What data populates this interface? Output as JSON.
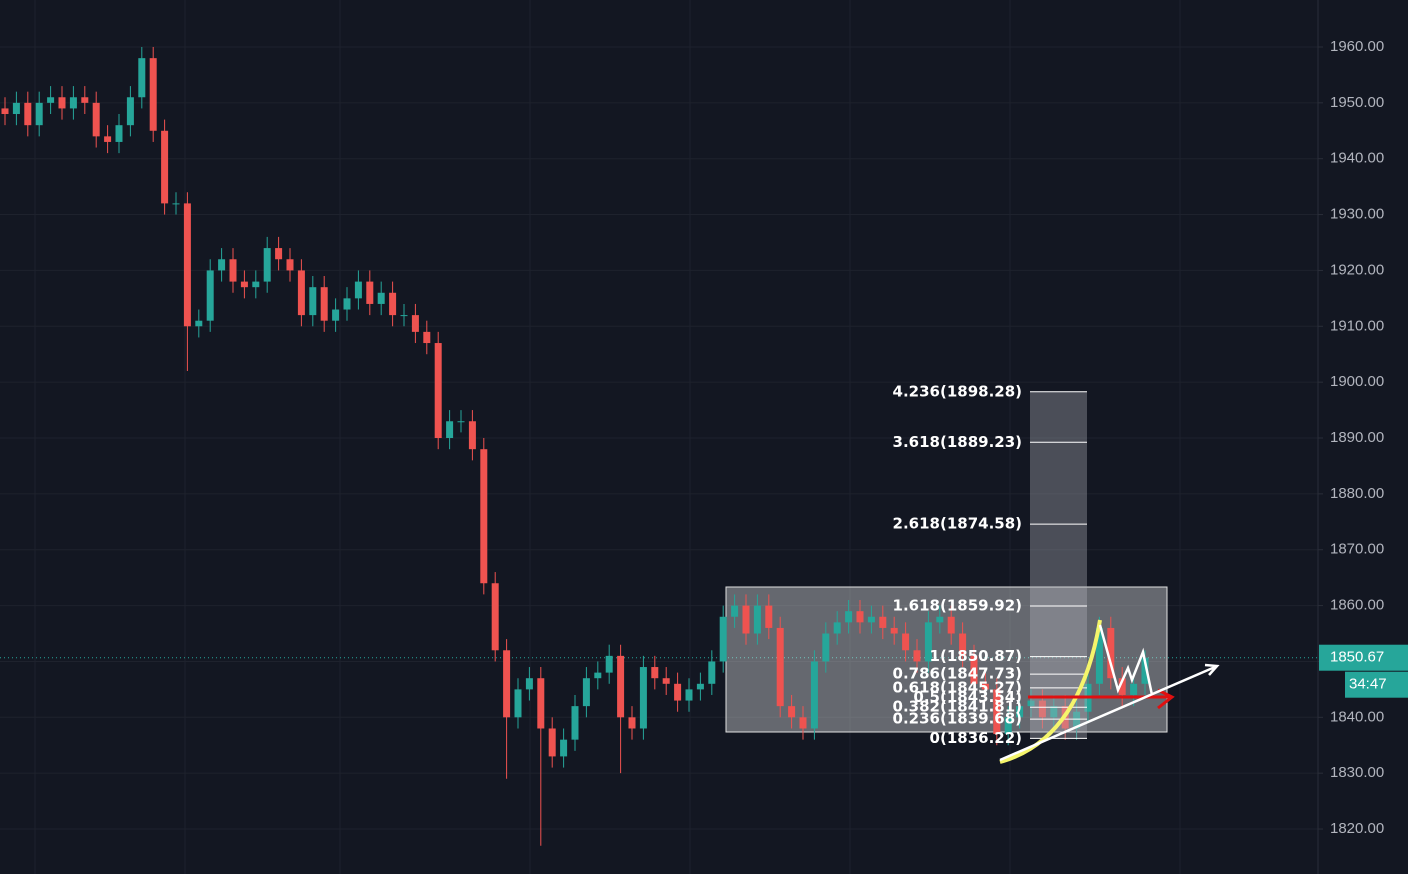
{
  "chart_data": {
    "type": "candlestick",
    "open": [
      1949,
      1948,
      1950,
      1946,
      1950,
      1951,
      1949,
      1951,
      1950,
      1944,
      1943,
      1946,
      1951,
      1958,
      1945,
      1932,
      1932,
      1910,
      1911,
      1920,
      1922,
      1918,
      1917,
      1918,
      1924,
      1922,
      1920,
      1912,
      1917,
      1911,
      1913,
      1915,
      1918,
      1914,
      1916,
      1912,
      1912,
      1909,
      1907,
      1890,
      1893,
      1893,
      1888,
      1864,
      1852,
      1840,
      1845,
      1847,
      1838,
      1833,
      1836,
      1842,
      1847,
      1848,
      1851,
      1840,
      1838,
      1849,
      1847,
      1846,
      1843,
      1845,
      1846,
      1850,
      1858,
      1860,
      1855,
      1860,
      1856,
      1842,
      1840,
      1838,
      1850,
      1855,
      1857,
      1859,
      1857,
      1858,
      1856,
      1855,
      1852,
      1850,
      1857,
      1858,
      1855,
      1851,
      1846,
      1845,
      1837,
      1840,
      1842,
      1843,
      1840,
      1842,
      1838,
      1841,
      1846,
      1856,
      1847,
      1844,
      1846
    ],
    "high": [
      1951,
      1952,
      1952,
      1952,
      1953,
      1953,
      1953,
      1953,
      1952,
      1946,
      1948,
      1953,
      1960,
      1960,
      1947,
      1934,
      1934,
      1913,
      1922,
      1924,
      1924,
      1920,
      1920,
      1926,
      1926,
      1924,
      1922,
      1919,
      1919,
      1915,
      1917,
      1920,
      1920,
      1918,
      1918,
      1914,
      1914,
      1911,
      1909,
      1895,
      1895,
      1895,
      1890,
      1866,
      1854,
      1847,
      1849,
      1849,
      1840,
      1838,
      1844,
      1849,
      1850,
      1853,
      1853,
      1842,
      1851,
      1851,
      1849,
      1848,
      1847,
      1848,
      1852,
      1860,
      1862,
      1862,
      1862,
      1862,
      1858,
      1844,
      1842,
      1852,
      1857,
      1859,
      1861,
      1861,
      1860,
      1860,
      1858,
      1857,
      1854,
      1859,
      1860,
      1860,
      1857,
      1853,
      1848,
      1847,
      1842,
      1844,
      1845,
      1845,
      1844,
      1844,
      1843,
      1848,
      1858,
      1858,
      1849,
      1848,
      1852
    ],
    "low": [
      1946,
      1946,
      1944,
      1944,
      1948,
      1947,
      1947,
      1948,
      1942,
      1941,
      1941,
      1944,
      1949,
      1943,
      1930,
      1930,
      1902,
      1908,
      1909,
      1918,
      1916,
      1915,
      1915,
      1916,
      1920,
      1918,
      1910,
      1910,
      1909,
      1909,
      1911,
      1913,
      1912,
      1912,
      1910,
      1910,
      1907,
      1905,
      1888,
      1888,
      1891,
      1886,
      1862,
      1850,
      1829,
      1838,
      1843,
      1817,
      1831,
      1831,
      1834,
      1840,
      1845,
      1846,
      1830,
      1836,
      1836,
      1845,
      1844,
      1841,
      1841,
      1843,
      1844,
      1848,
      1856,
      1853,
      1853,
      1854,
      1840,
      1838,
      1836,
      1836,
      1848,
      1853,
      1855,
      1855,
      1855,
      1854,
      1853,
      1850,
      1848,
      1848,
      1855,
      1853,
      1849,
      1844,
      1843,
      1835,
      1835,
      1838,
      1840,
      1838,
      1838,
      1836,
      1836,
      1839,
      1844,
      1845,
      1842,
      1842,
      1844
    ],
    "close": [
      1948,
      1950,
      1946,
      1950,
      1951,
      1949,
      1951,
      1950,
      1944,
      1943,
      1946,
      1951,
      1958,
      1945,
      1932,
      1932,
      1910,
      1911,
      1920,
      1922,
      1918,
      1917,
      1918,
      1924,
      1922,
      1920,
      1912,
      1917,
      1911,
      1913,
      1915,
      1918,
      1914,
      1916,
      1912,
      1912,
      1909,
      1907,
      1890,
      1893,
      1893,
      1888,
      1864,
      1852,
      1840,
      1845,
      1847,
      1838,
      1833,
      1836,
      1842,
      1847,
      1848,
      1851,
      1840,
      1838,
      1849,
      1847,
      1846,
      1843,
      1845,
      1846,
      1850,
      1858,
      1860,
      1855,
      1860,
      1856,
      1842,
      1840,
      1838,
      1850,
      1855,
      1857,
      1859,
      1857,
      1858,
      1856,
      1855,
      1852,
      1850,
      1857,
      1858,
      1855,
      1851,
      1846,
      1845,
      1837,
      1840,
      1842,
      1843,
      1840,
      1842,
      1838,
      1841,
      1846,
      1856,
      1847,
      1844,
      1846,
      1850.67
    ],
    "up_color": "#26a69a",
    "down_color": "#ef5350",
    "ylim": [
      1811.95,
      1968.41
    ],
    "yticks": [
      {
        "value": 1960,
        "label": "1960.00"
      },
      {
        "value": 1950,
        "label": "1950.00"
      },
      {
        "value": 1940,
        "label": "1940.00"
      },
      {
        "value": 1930,
        "label": "1930.00"
      },
      {
        "value": 1920,
        "label": "1920.00"
      },
      {
        "value": 1910,
        "label": "1910.00"
      },
      {
        "value": 1900,
        "label": "1900.00"
      },
      {
        "value": 1890,
        "label": "1890.00"
      },
      {
        "value": 1880,
        "label": "1880.00"
      },
      {
        "value": 1870,
        "label": "1870.00"
      },
      {
        "value": 1860,
        "label": "1860.00"
      },
      {
        "value": 1850,
        "label": "1850.00"
      },
      {
        "value": 1840,
        "label": "1840.00"
      },
      {
        "value": 1830,
        "label": "1830.00"
      },
      {
        "value": 1820,
        "label": "1820.00"
      }
    ],
    "grid": true,
    "fib_levels": [
      {
        "value": 1898.28,
        "label": "4.236(1898.28)"
      },
      {
        "value": 1889.23,
        "label": "3.618(1889.23)"
      },
      {
        "value": 1874.58,
        "label": "2.618(1874.58)"
      },
      {
        "value": 1859.92,
        "label": "1.618(1859.92)"
      },
      {
        "value": 1850.87,
        "label": "1(1850.87)"
      },
      {
        "value": 1847.73,
        "label": "0.786(1847.73)"
      },
      {
        "value": 1845.27,
        "label": "0.618(1845.27)"
      },
      {
        "value": 1843.54,
        "label": "0.5(1843.54)"
      },
      {
        "value": 1841.81,
        "label": "0.382(1841.81)"
      },
      {
        "value": 1839.68,
        "label": "0.236(1839.68)"
      },
      {
        "value": 1836.22,
        "label": "0(1836.22)"
      }
    ],
    "last_price": {
      "value": 1850.67,
      "label": "1850.67"
    },
    "countdown": "34:47"
  }
}
